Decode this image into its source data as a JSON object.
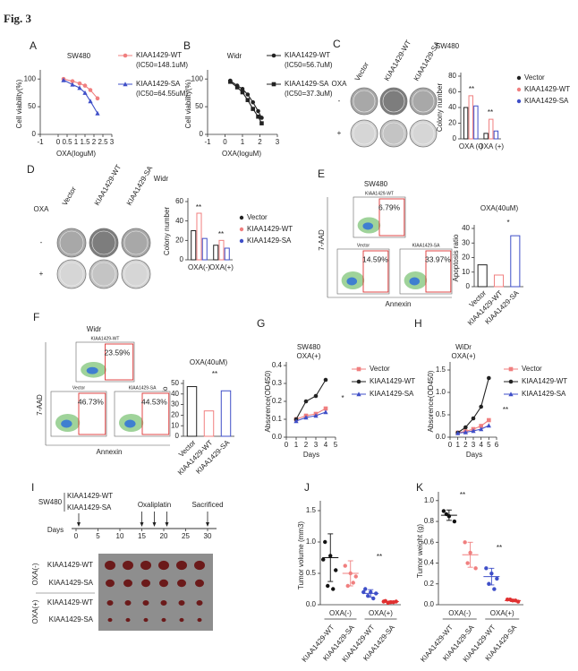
{
  "figure_label": "Fig. 3",
  "chart_data": [
    {
      "type": "line",
      "panel": "A",
      "title": "SW480",
      "x_label": "OXA(loguM)",
      "y_label": "Cell viability(%)",
      "x": [
        0.3,
        0.8,
        1.2,
        1.5,
        1.8,
        2.2
      ],
      "xlim": [
        -1,
        3
      ],
      "xticks": [
        -1,
        0,
        0.5,
        1,
        1.5,
        2,
        2.5,
        3
      ],
      "ylim": [
        0,
        110
      ],
      "yticks": [
        0,
        50,
        100
      ],
      "series": [
        {
          "name": "KIAA1429-WT",
          "note": "(IC50=148.1uM)",
          "color": "#f07f7f",
          "marker": "circle",
          "values": [
            100,
            96,
            92,
            88,
            80,
            65
          ]
        },
        {
          "name": "KIAA1429-SA",
          "note": "(IC50=64.55uM)",
          "color": "#3f4fc8",
          "marker": "triangle",
          "values": [
            98,
            90,
            84,
            75,
            60,
            38
          ]
        }
      ]
    },
    {
      "type": "line",
      "panel": "B",
      "title": "Widr",
      "x_label": "OXA(loguM)",
      "y_label": "Cell viability(%)",
      "x": [
        0.3,
        0.7,
        1.0,
        1.3,
        1.6,
        1.9,
        2.1
      ],
      "xlim": [
        -1,
        3
      ],
      "xticks": [
        -1,
        0,
        1,
        2,
        3
      ],
      "ylim": [
        0,
        110
      ],
      "yticks": [
        0,
        50,
        100
      ],
      "series": [
        {
          "name": "KIAA1429-WT",
          "note": "(IC50=56.7uM)",
          "color": "#222222",
          "marker": "circle",
          "values": [
            97,
            88,
            82,
            72,
            58,
            42,
            30
          ]
        },
        {
          "name": "KIAA1429-SA",
          "note": "(IC50=37.3uM)",
          "color": "#222222",
          "marker": "square",
          "values": [
            95,
            85,
            76,
            62,
            46,
            32,
            20
          ]
        }
      ]
    },
    {
      "type": "bar",
      "panel": "C",
      "title": "SW480",
      "y_label": "Colony number",
      "categories": [
        "OXA (-)",
        "OXA (+)"
      ],
      "ylim": [
        0,
        80
      ],
      "yticks": [
        0,
        20,
        40,
        60,
        80
      ],
      "series": [
        {
          "name": "Vector",
          "color": "#222222",
          "values": [
            40,
            7
          ]
        },
        {
          "name": "KIAA1429-WT",
          "color": "#f07f7f",
          "values": [
            55,
            25
          ]
        },
        {
          "name": "KIAA1429-SA",
          "color": "#3f4fc8",
          "values": [
            42,
            10
          ]
        }
      ],
      "annotations": [
        "**",
        "**"
      ]
    },
    {
      "type": "bar",
      "panel": "D",
      "title": "Widr",
      "y_label": "Colony number",
      "categories": [
        "OXA(-)",
        "OXA(+)"
      ],
      "ylim": [
        0,
        60
      ],
      "yticks": [
        0,
        20,
        40,
        60
      ],
      "series": [
        {
          "name": "Vector",
          "color": "#222222",
          "values": [
            30,
            15
          ]
        },
        {
          "name": "KIAA1429-WT",
          "color": "#f07f7f",
          "values": [
            48,
            20
          ]
        },
        {
          "name": "KIAA1429-SA",
          "color": "#3f4fc8",
          "values": [
            22,
            12
          ]
        }
      ],
      "annotations": [
        "**",
        "**"
      ]
    },
    {
      "type": "bar",
      "panel": "E",
      "title": "OXA(40uM)",
      "y_label": "Apoptosis ratio",
      "categories": [
        "Vector",
        "KIAA1429-WT",
        "KIAA1429-SA"
      ],
      "values": [
        15,
        8,
        35
      ],
      "colors": [
        "#222222",
        "#f07f7f",
        "#3f4fc8"
      ],
      "ylim": [
        0,
        40
      ],
      "yticks": [
        0,
        10,
        20,
        30,
        40
      ],
      "annotations": [
        "*"
      ]
    },
    {
      "type": "bar",
      "panel": "F",
      "title": "OXA(40uM)",
      "y_label": "Apoptosis ratio",
      "categories": [
        "Vector",
        "KIAA1429-WT",
        "KIAA1429-SA"
      ],
      "values": [
        47,
        24,
        43
      ],
      "colors": [
        "#222222",
        "#f07f7f",
        "#3f4fc8"
      ],
      "ylim": [
        0,
        50
      ],
      "yticks": [
        0,
        10,
        20,
        30,
        40,
        50
      ],
      "annotations": [
        "**"
      ]
    },
    {
      "type": "line",
      "panel": "G",
      "title": "SW480",
      "subtitle": "OXA(+)",
      "x_label": "Days",
      "y_label": "Absorence(OD450)",
      "x": [
        1,
        2,
        3,
        4
      ],
      "xlim": [
        0,
        5
      ],
      "xticks": [
        0,
        1,
        2,
        3,
        4,
        5
      ],
      "ylim": [
        0,
        0.4
      ],
      "yticks": [
        {
          "value": 0,
          "label": "0.0"
        },
        0.1,
        0.2,
        0.3,
        0.4
      ],
      "series": [
        {
          "name": "Vector",
          "color": "#f07f7f",
          "marker": "square",
          "values": [
            0.1,
            0.12,
            0.13,
            0.16
          ]
        },
        {
          "name": "KIAA1429-WT",
          "color": "#222222",
          "marker": "circle",
          "values": [
            0.1,
            0.2,
            0.23,
            0.32
          ]
        },
        {
          "name": "KIAA1429-SA",
          "color": "#3f4fc8",
          "marker": "triangle",
          "values": [
            0.09,
            0.11,
            0.12,
            0.14
          ]
        }
      ],
      "annotations": [
        "*"
      ]
    },
    {
      "type": "line",
      "panel": "H",
      "title": "WiDr",
      "subtitle": "OXA(+)",
      "x_label": "Days",
      "y_label": "Absorence(OD450)",
      "x": [
        1,
        2,
        3,
        4,
        5
      ],
      "xlim": [
        0,
        6
      ],
      "xticks": [
        0,
        1,
        2,
        3,
        4,
        5,
        6
      ],
      "ylim": [
        0,
        1.6
      ],
      "yticks": [
        {
          "value": 0,
          "label": "0.0"
        },
        0.5,
        {
          "value": 1,
          "label": "1.0"
        },
        1.5
      ],
      "series": [
        {
          "name": "Vector",
          "color": "#f07f7f",
          "marker": "square",
          "values": [
            0.1,
            0.13,
            0.18,
            0.25,
            0.38
          ]
        },
        {
          "name": "KIAA1429-WT",
          "color": "#222222",
          "marker": "circle",
          "values": [
            0.1,
            0.22,
            0.42,
            0.68,
            1.32
          ]
        },
        {
          "name": "KIAA1429-SA",
          "color": "#3f4fc8",
          "marker": "triangle",
          "values": [
            0.09,
            0.11,
            0.14,
            0.18,
            0.26
          ]
        }
      ],
      "annotations": [
        "**"
      ]
    },
    {
      "type": "dot",
      "panel": "J",
      "y_label": "Tumor volume (mm3)",
      "categories": [
        "KIAA1429-WT",
        "KIAA1429-SA",
        "KIAA1429-WT",
        "KIAA1429-SA"
      ],
      "groups": [
        "OXA(-)",
        "OXA(+)"
      ],
      "colors": [
        "#111111",
        "#f07f7f",
        "#3f4fc8",
        "#e03030"
      ],
      "points": [
        [
          1.0,
          0.78,
          0.55,
          0.3,
          0.25,
          0.72
        ],
        [
          0.62,
          0.5,
          0.45,
          0.3,
          0.35
        ],
        [
          0.25,
          0.2,
          0.18,
          0.14,
          0.1,
          0.2
        ],
        [
          0.06,
          0.04,
          0.05,
          0.03,
          0.04,
          0.05
        ]
      ],
      "means": [
        0.75,
        0.5,
        0.18,
        0.05
      ],
      "errors": [
        0.38,
        0.2,
        0.06,
        0.01
      ],
      "ylim": [
        0,
        1.6
      ],
      "yticks": [
        {
          "value": 0,
          "label": "0.0"
        },
        0.5,
        {
          "value": 1,
          "label": "1.0"
        },
        1.5
      ],
      "annotations": [
        "**"
      ]
    },
    {
      "type": "dot",
      "panel": "K",
      "y_label": "Tumor weight (g)",
      "categories": [
        "KIAA1429-WT",
        "KIAA1429-SA",
        "KIAA1429-WT",
        "KIAA1429-SA"
      ],
      "groups": [
        "OXA(-)",
        "OXA(+)"
      ],
      "colors": [
        "#111111",
        "#f07f7f",
        "#3f4fc8",
        "#e03030"
      ],
      "points": [
        [
          0.9,
          0.85,
          0.8,
          0.87
        ],
        [
          0.6,
          0.5,
          0.35,
          0.4
        ],
        [
          0.35,
          0.3,
          0.25,
          0.2,
          0.15
        ],
        [
          0.05,
          0.04,
          0.03,
          0.05,
          0.04
        ]
      ],
      "means": [
        0.86,
        0.48,
        0.27,
        0.04
      ],
      "errors": [
        0.05,
        0.12,
        0.08,
        0.01
      ],
      "ylim": [
        0,
        1.05
      ],
      "yticks": [
        {
          "value": 0,
          "label": "0.0"
        },
        0.2,
        0.4,
        0.6,
        0.8,
        {
          "value": 1,
          "label": "1.0"
        }
      ],
      "annotations": [
        "**",
        "**"
      ]
    }
  ],
  "panels": {
    "C": {
      "treatment": "OXA",
      "columns": [
        "Vector",
        "KIAA1429-WT",
        "KIAA1429-SA"
      ],
      "rows": [
        "-",
        "+"
      ]
    },
    "D": {
      "treatment": "OXA",
      "columns": [
        "Vector",
        "KIAA1429-WT",
        "KIAA1429-SA"
      ],
      "rows": [
        "-",
        "+"
      ]
    },
    "E": {
      "cell_line": "SW480",
      "y_label": "7-AAD",
      "x_label": "Annexin",
      "plots": [
        {
          "title": "KIAA1429-WT",
          "percent": "6.79%"
        },
        {
          "title": "Vector",
          "percent": "14.59%"
        },
        {
          "title": "KIAA1429-SA",
          "percent": "33.97%"
        }
      ]
    },
    "F": {
      "cell_line": "Widr",
      "y_label": "7-AAD",
      "x_label": "Annexin",
      "plots": [
        {
          "title": "KIAA1429-WT",
          "percent": "23.59%"
        },
        {
          "title": "Vector",
          "percent": "46.73%"
        },
        {
          "title": "KIAA1429-SA",
          "percent": "44.53%"
        }
      ]
    },
    "I": {
      "panel": "I",
      "cell_line": "SW480",
      "groups": [
        "KIAA1429-WT",
        "KIAA1429-SA"
      ],
      "axis_label": "Days",
      "ticks": [
        0,
        5,
        10,
        15,
        20,
        25,
        30
      ],
      "treatment": "Oxaliplatin",
      "endpoint": "Sacrificed",
      "treatment_rows": [
        "OXA(-)",
        "OXA(+)"
      ],
      "row_labels": [
        "KIAA1429-WT",
        "KIAA1429-SA",
        "KIAA1429-WT",
        "KIAA1429-SA"
      ]
    }
  }
}
